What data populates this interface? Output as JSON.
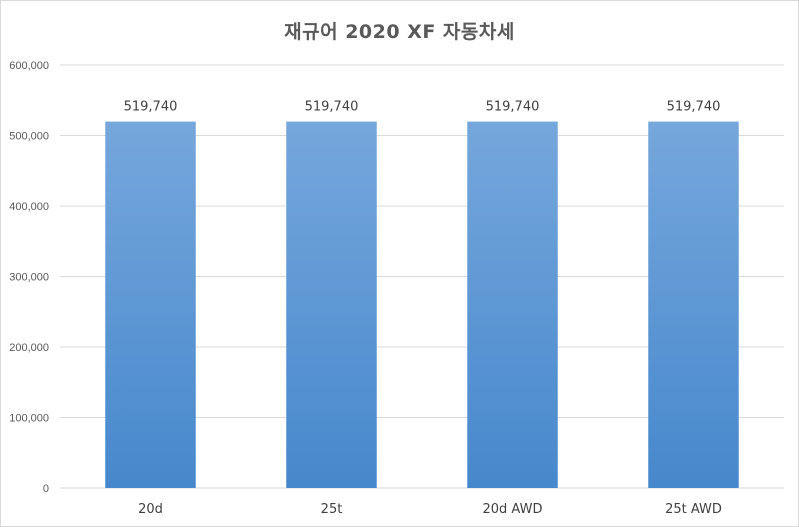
{
  "chart_data": {
    "type": "bar",
    "title": "재규어 2020 XF 자동차세",
    "xlabel": "",
    "ylabel": "",
    "categories": [
      "20d",
      "25t",
      "20d AWD",
      "25t AWD"
    ],
    "values": [
      519740,
      519740,
      519740,
      519740
    ],
    "data_labels": [
      "519,740",
      "519,740",
      "519,740",
      "519,740"
    ],
    "ylim": [
      0,
      600000
    ],
    "yticks": [
      0,
      100000,
      200000,
      300000,
      400000,
      500000,
      600000
    ],
    "ytick_labels": [
      "0",
      "100,000",
      "200,000",
      "300,000",
      "400,000",
      "500,000",
      "600,000"
    ],
    "grid": true,
    "legend": "none",
    "colors": {
      "bar_top": "#76a7dc",
      "bar_bottom": "#4688cc",
      "grid": "#d9d9d9",
      "text": "#595959"
    }
  }
}
